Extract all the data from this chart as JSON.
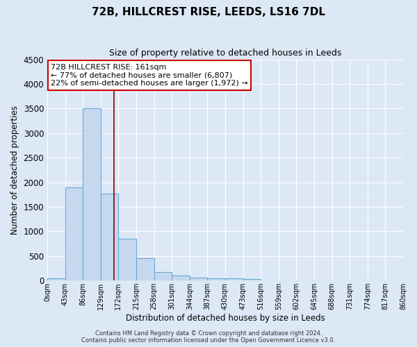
{
  "title": "72B, HILLCREST RISE, LEEDS, LS16 7DL",
  "subtitle": "Size of property relative to detached houses in Leeds",
  "xlabel": "Distribution of detached houses by size in Leeds",
  "ylabel": "Number of detached properties",
  "bin_edges": [
    0,
    43,
    86,
    129,
    172,
    215,
    258,
    301,
    344,
    387,
    430,
    473,
    516,
    559,
    602,
    645,
    688,
    731,
    774,
    817,
    860
  ],
  "bar_values": [
    50,
    1900,
    3500,
    1770,
    850,
    450,
    175,
    100,
    60,
    50,
    40,
    30,
    0,
    0,
    0,
    0,
    0,
    0,
    0,
    0
  ],
  "bar_color": "#c5d8f0",
  "bar_edge_color": "#6aaad4",
  "vline_x": 161,
  "vline_color": "#8b0000",
  "ylim": [
    0,
    4500
  ],
  "annotation_text": "72B HILLCREST RISE: 161sqm\n← 77% of detached houses are smaller (6,807)\n22% of semi-detached houses are larger (1,972) →",
  "annotation_box_color": "#ffffff",
  "annotation_box_edgecolor": "#cc0000",
  "footer_line1": "Contains HM Land Registry data © Crown copyright and database right 2024.",
  "footer_line2": "Contains public sector information licensed under the Open Government Licence v3.0.",
  "tick_labels": [
    "0sqm",
    "43sqm",
    "86sqm",
    "129sqm",
    "172sqm",
    "215sqm",
    "258sqm",
    "301sqm",
    "344sqm",
    "387sqm",
    "430sqm",
    "473sqm",
    "516sqm",
    "559sqm",
    "602sqm",
    "645sqm",
    "688sqm",
    "731sqm",
    "774sqm",
    "817sqm",
    "860sqm"
  ],
  "background_color": "#dce8f5",
  "grid_color": "#ffffff",
  "yticks": [
    0,
    500,
    1000,
    1500,
    2000,
    2500,
    3000,
    3500,
    4000,
    4500
  ]
}
